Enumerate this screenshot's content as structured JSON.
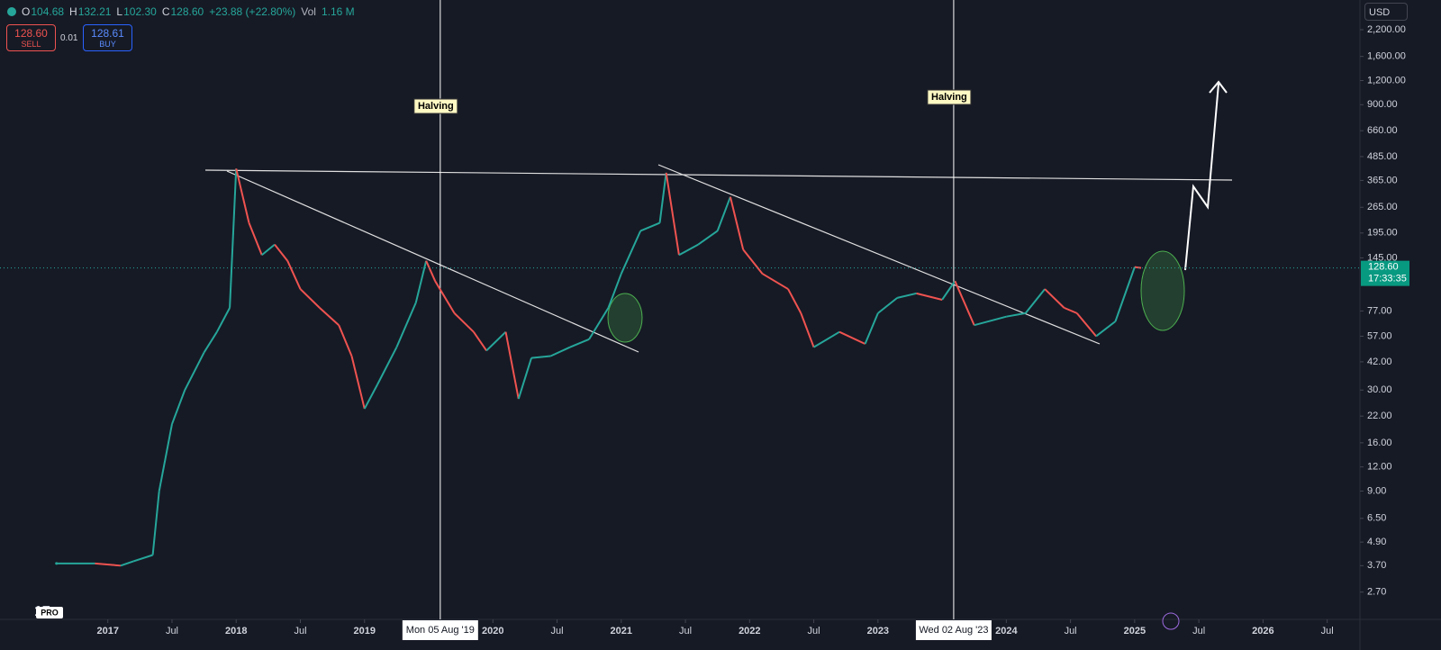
{
  "header": {
    "ohlc": [
      {
        "key": "O",
        "value": "104.68"
      },
      {
        "key": "H",
        "value": "132.21"
      },
      {
        "key": "L",
        "value": "102.30"
      },
      {
        "key": "C",
        "value": "128.60"
      }
    ],
    "change": "+23.88 (+22.80%)",
    "vol_key": "Vol",
    "vol": "1.16 M"
  },
  "trade": {
    "sell_price": "128.60",
    "sell": "SELL",
    "spread": "0.01",
    "buy_price": "128.61",
    "buy": "BUY"
  },
  "currency": "USD",
  "logo": "PRO",
  "chart_data": {
    "type": "line",
    "log_scale": true,
    "x": [
      2016.6,
      2016.9,
      2017.1,
      2017.2,
      2017.35,
      2017.4,
      2017.5,
      2017.6,
      2017.75,
      2017.85,
      2017.95,
      2018.0,
      2018.1,
      2018.2,
      2018.3,
      2018.4,
      2018.5,
      2018.65,
      2018.8,
      2018.9,
      2019.0,
      2019.1,
      2019.25,
      2019.4,
      2019.48,
      2019.55,
      2019.7,
      2019.85,
      2019.95,
      2020.1,
      2020.2,
      2020.3,
      2020.45,
      2020.6,
      2020.75,
      2020.9,
      2021.0,
      2021.15,
      2021.3,
      2021.35,
      2021.45,
      2021.6,
      2021.75,
      2021.85,
      2021.95,
      2022.1,
      2022.3,
      2022.4,
      2022.5,
      2022.7,
      2022.9,
      2023.0,
      2023.15,
      2023.3,
      2023.5,
      2023.6,
      2023.75,
      2024.0,
      2024.15,
      2024.3,
      2024.45,
      2024.55,
      2024.7,
      2024.85,
      2025.0,
      2025.05
    ],
    "series": [
      {
        "name": "Price",
        "up_color": "#26a69a",
        "down_color": "#ef5350",
        "values": [
          3.8,
          3.8,
          3.7,
          3.9,
          4.2,
          9,
          20,
          30,
          47,
          60,
          80,
          420,
          220,
          150,
          170,
          140,
          100,
          80,
          65,
          45,
          24,
          32,
          50,
          85,
          140,
          110,
          75,
          60,
          48,
          60,
          27,
          44,
          45,
          50,
          55,
          80,
          120,
          200,
          220,
          400,
          150,
          170,
          200,
          300,
          160,
          120,
          100,
          75,
          50,
          60,
          52,
          75,
          90,
          95,
          88,
          110,
          65,
          72,
          75,
          100,
          80,
          75,
          57,
          68,
          130,
          128.6
        ]
      }
    ],
    "last_price": {
      "value": 128.6,
      "label": "128.60",
      "countdown": "17:33:35"
    },
    "ylim": [
      1.95,
      3135
    ],
    "yticks": [
      {
        "value": 2200,
        "label": "2,200.00"
      },
      {
        "value": 1600,
        "label": "1,600.00"
      },
      {
        "value": 1200,
        "label": "1,200.00"
      },
      {
        "value": 900,
        "label": "900.00"
      },
      {
        "value": 660,
        "label": "660.00"
      },
      {
        "value": 485,
        "label": "485.00"
      },
      {
        "value": 365,
        "label": "365.00"
      },
      {
        "value": 265,
        "label": "265.00"
      },
      {
        "value": 195,
        "label": "195.00"
      },
      {
        "value": 145,
        "label": "145.00"
      },
      {
        "value": 77,
        "label": "77.00"
      },
      {
        "value": 57,
        "label": "57.00"
      },
      {
        "value": 42,
        "label": "42.00"
      },
      {
        "value": 30,
        "label": "30.00"
      },
      {
        "value": 22,
        "label": "22.00"
      },
      {
        "value": 16,
        "label": "16.00"
      },
      {
        "value": 12,
        "label": "12.00"
      },
      {
        "value": 9,
        "label": "9.00"
      },
      {
        "value": 6.5,
        "label": "6.50"
      },
      {
        "value": 4.9,
        "label": "4.90"
      },
      {
        "value": 3.7,
        "label": "3.70"
      },
      {
        "value": 2.7,
        "label": "2.70"
      }
    ],
    "xlim": [
      2016.16,
      2026.72
    ],
    "xticks": [
      2017,
      {
        "value": 2017.5,
        "label": "Jul"
      },
      2018,
      {
        "value": 2018.5,
        "label": "Jul"
      },
      2019,
      2020,
      {
        "value": 2020.5,
        "label": "Jul"
      },
      2021,
      {
        "value": 2021.5,
        "label": "Jul"
      },
      2022,
      {
        "value": 2022.5,
        "label": "Jul"
      },
      2023,
      2024,
      {
        "value": 2024.5,
        "label": "Jul"
      },
      2025,
      {
        "value": 2025.5,
        "label": "Jul"
      },
      2026,
      {
        "value": 2026.5,
        "label": "Jul"
      }
    ],
    "annotations": [
      {
        "text": "Halving",
        "x": 2019.59,
        "date": "Mon 05 Aug '19"
      },
      {
        "text": "Halving",
        "x": 2023.59,
        "date": "Wed 02 Aug '23"
      }
    ]
  }
}
